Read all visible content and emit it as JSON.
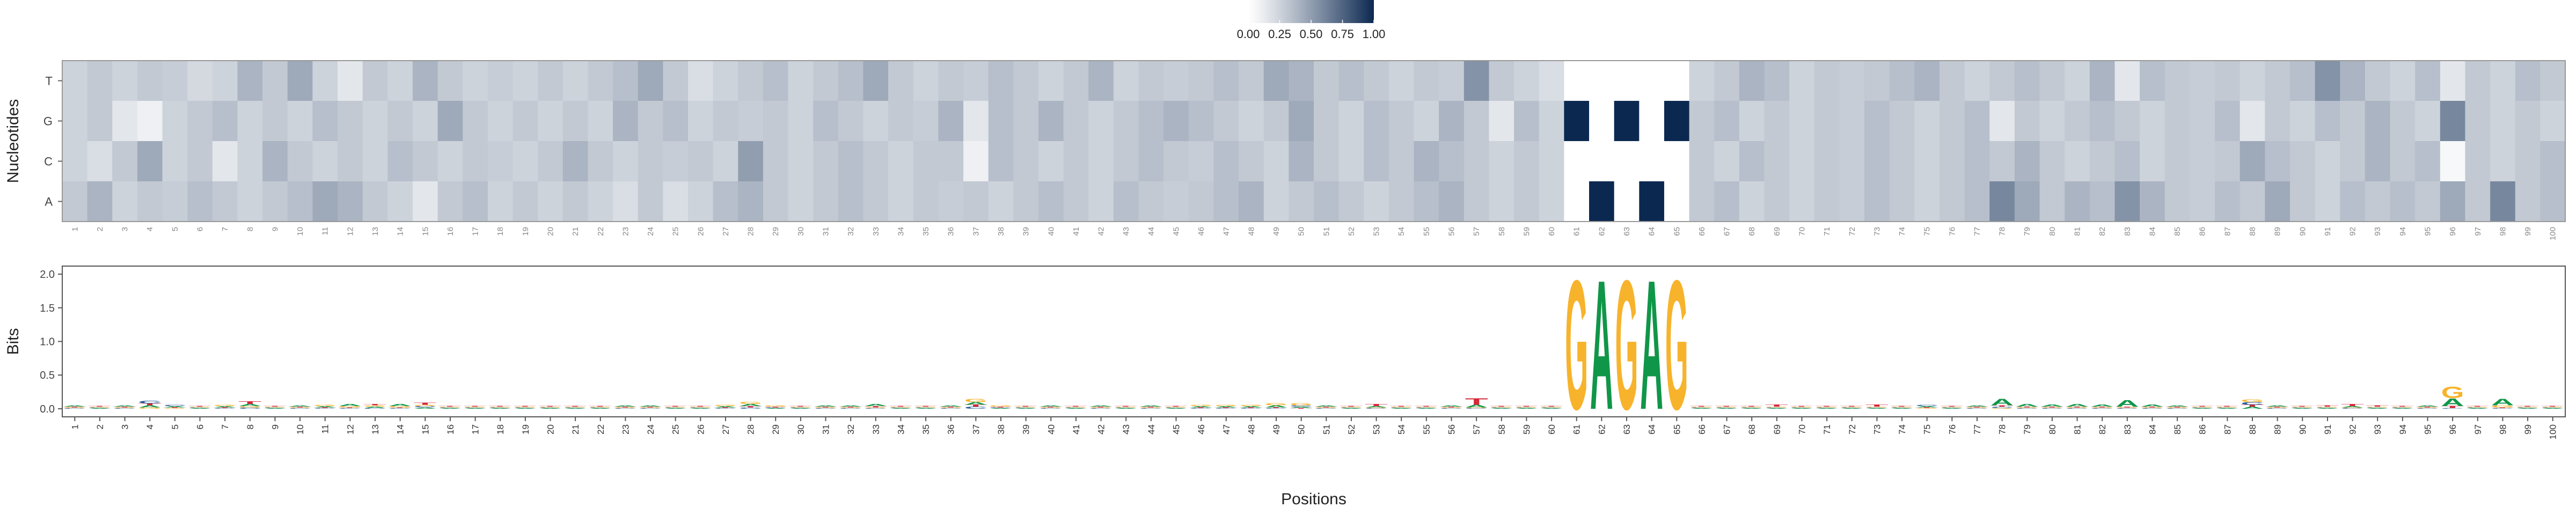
{
  "chart_data": [
    {
      "type": "heatmap",
      "y_label": "Nucleotides",
      "rows": [
        "T",
        "G",
        "C",
        "A"
      ],
      "categories": [
        "1",
        "2",
        "3",
        "4",
        "5",
        "6",
        "7",
        "8",
        "9",
        "10",
        "11",
        "12",
        "13",
        "14",
        "15",
        "16",
        "17",
        "18",
        "19",
        "20",
        "21",
        "22",
        "23",
        "24",
        "25",
        "26",
        "27",
        "28",
        "29",
        "30",
        "31",
        "32",
        "33",
        "34",
        "35",
        "36",
        "37",
        "38",
        "39",
        "40",
        "41",
        "42",
        "43",
        "44",
        "45",
        "46",
        "47",
        "48",
        "49",
        "50",
        "51",
        "52",
        "53",
        "54",
        "55",
        "56",
        "57",
        "58",
        "59",
        "60",
        "61",
        "62",
        "63",
        "64",
        "65",
        "66",
        "67",
        "68",
        "69",
        "70",
        "71",
        "72",
        "73",
        "74",
        "75",
        "76",
        "77",
        "78",
        "79",
        "80",
        "81",
        "82",
        "83",
        "84",
        "85",
        "86",
        "87",
        "88",
        "89",
        "90",
        "91",
        "92",
        "93",
        "94",
        "95",
        "96",
        "97",
        "98",
        "99",
        "100"
      ],
      "values": [
        [
          0.25,
          0.3,
          0.25,
          0.3,
          0.28,
          0.22,
          0.25,
          0.4,
          0.3,
          0.45,
          0.25,
          0.15,
          0.3,
          0.25,
          0.4,
          0.3,
          0.25,
          0.28,
          0.25,
          0.3,
          0.25,
          0.3,
          0.35,
          0.45,
          0.3,
          0.2,
          0.25,
          0.3,
          0.35,
          0.25,
          0.3,
          0.35,
          0.45,
          0.3,
          0.25,
          0.3,
          0.28,
          0.35,
          0.3,
          0.25,
          0.3,
          0.4,
          0.25,
          0.3,
          0.28,
          0.3,
          0.35,
          0.3,
          0.45,
          0.4,
          0.3,
          0.35,
          0.3,
          0.25,
          0.3,
          0.28,
          0.55,
          0.3,
          0.25,
          0.2,
          0,
          0,
          0,
          0,
          0,
          0.25,
          0.3,
          0.4,
          0.35,
          0.25,
          0.3,
          0.28,
          0.3,
          0.35,
          0.4,
          0.3,
          0.25,
          0.3,
          0.35,
          0.3,
          0.25,
          0.4,
          0.15,
          0.35,
          0.3,
          0.28,
          0.3,
          0.25,
          0.3,
          0.35,
          0.55,
          0.4,
          0.3,
          0.25,
          0.35,
          0.15,
          0.3,
          0.25,
          0.35,
          0.3
        ],
        [
          0.25,
          0.3,
          0.15,
          0.1,
          0.25,
          0.3,
          0.35,
          0.25,
          0.3,
          0.25,
          0.35,
          0.3,
          0.25,
          0.3,
          0.25,
          0.45,
          0.3,
          0.25,
          0.3,
          0.25,
          0.3,
          0.25,
          0.4,
          0.3,
          0.35,
          0.25,
          0.3,
          0.28,
          0.3,
          0.25,
          0.35,
          0.3,
          0.25,
          0.3,
          0.28,
          0.4,
          0.15,
          0.35,
          0.3,
          0.4,
          0.3,
          0.25,
          0.3,
          0.35,
          0.4,
          0.35,
          0.3,
          0.25,
          0.3,
          0.45,
          0.3,
          0.25,
          0.35,
          0.3,
          0.25,
          0.4,
          0.3,
          0.15,
          0.35,
          0.25,
          1,
          0,
          1,
          0,
          1,
          0.3,
          0.35,
          0.25,
          0.3,
          0.25,
          0.3,
          0.28,
          0.35,
          0.3,
          0.25,
          0.3,
          0.35,
          0.15,
          0.3,
          0.25,
          0.3,
          0.35,
          0.3,
          0.25,
          0.3,
          0.28,
          0.35,
          0.15,
          0.3,
          0.25,
          0.35,
          0.3,
          0.4,
          0.3,
          0.25,
          0.6,
          0.3,
          0.25,
          0.3,
          0.25
        ],
        [
          0.25,
          0.2,
          0.3,
          0.45,
          0.25,
          0.3,
          0.15,
          0.25,
          0.4,
          0.3,
          0.25,
          0.3,
          0.25,
          0.35,
          0.3,
          0.25,
          0.3,
          0.28,
          0.25,
          0.3,
          0.4,
          0.3,
          0.25,
          0.3,
          0.28,
          0.3,
          0.25,
          0.5,
          0.3,
          0.25,
          0.3,
          0.35,
          0.3,
          0.25,
          0.3,
          0.3,
          0.1,
          0.35,
          0.3,
          0.25,
          0.3,
          0.25,
          0.3,
          0.35,
          0.3,
          0.28,
          0.35,
          0.3,
          0.25,
          0.4,
          0.3,
          0.25,
          0.35,
          0.3,
          0.4,
          0.35,
          0.3,
          0.25,
          0.3,
          0.25,
          0,
          0,
          0,
          0,
          0,
          0.3,
          0.25,
          0.35,
          0.3,
          0.25,
          0.3,
          0.28,
          0.35,
          0.3,
          0.25,
          0.3,
          0.35,
          0.3,
          0.4,
          0.3,
          0.25,
          0.3,
          0.35,
          0.25,
          0.3,
          0.28,
          0.3,
          0.45,
          0.35,
          0.3,
          0.25,
          0.3,
          0.4,
          0.3,
          0.35,
          0.05,
          0.3,
          0.25,
          0.3,
          0.35
        ],
        [
          0.3,
          0.4,
          0.25,
          0.3,
          0.28,
          0.35,
          0.3,
          0.25,
          0.3,
          0.35,
          0.45,
          0.4,
          0.3,
          0.25,
          0.15,
          0.3,
          0.35,
          0.25,
          0.3,
          0.25,
          0.3,
          0.25,
          0.2,
          0.3,
          0.2,
          0.25,
          0.35,
          0.4,
          0.3,
          0.25,
          0.3,
          0.35,
          0.3,
          0.25,
          0.3,
          0.28,
          0.3,
          0.25,
          0.3,
          0.35,
          0.3,
          0.25,
          0.35,
          0.3,
          0.28,
          0.3,
          0.35,
          0.4,
          0.25,
          0.3,
          0.35,
          0.3,
          0.25,
          0.3,
          0.35,
          0.4,
          0.3,
          0.25,
          0.3,
          0.25,
          0,
          1,
          0,
          1,
          0,
          0.3,
          0.35,
          0.25,
          0.3,
          0.25,
          0.3,
          0.28,
          0.35,
          0.3,
          0.25,
          0.3,
          0.35,
          0.6,
          0.45,
          0.3,
          0.4,
          0.35,
          0.55,
          0.4,
          0.3,
          0.28,
          0.35,
          0.3,
          0.45,
          0.3,
          0.25,
          0.35,
          0.3,
          0.35,
          0.3,
          0.45,
          0.3,
          0.6,
          0.3,
          0.35
        ]
      ],
      "colorbar": {
        "clim": [
          0,
          1
        ],
        "colors": [
          "#ffffff",
          "#0b2850"
        ],
        "ticks": [
          {
            "value": 0,
            "label": "0.00"
          },
          {
            "value": 0.25,
            "label": "0.25"
          },
          {
            "value": 0.5,
            "label": "0.50"
          },
          {
            "value": 0.75,
            "label": "0.75"
          },
          {
            "value": 1,
            "label": "1.00"
          }
        ]
      }
    },
    {
      "type": "logo",
      "x_label": "Positions",
      "y_label": "Bits",
      "categories": [
        "1",
        "2",
        "3",
        "4",
        "5",
        "6",
        "7",
        "8",
        "9",
        "10",
        "11",
        "12",
        "13",
        "14",
        "15",
        "16",
        "17",
        "18",
        "19",
        "20",
        "21",
        "22",
        "23",
        "24",
        "25",
        "26",
        "27",
        "28",
        "29",
        "30",
        "31",
        "32",
        "33",
        "34",
        "35",
        "36",
        "37",
        "38",
        "39",
        "40",
        "41",
        "42",
        "43",
        "44",
        "45",
        "46",
        "47",
        "48",
        "49",
        "50",
        "51",
        "52",
        "53",
        "54",
        "55",
        "56",
        "57",
        "58",
        "59",
        "60",
        "61",
        "62",
        "63",
        "64",
        "65",
        "66",
        "67",
        "68",
        "69",
        "70",
        "71",
        "72",
        "73",
        "74",
        "75",
        "76",
        "77",
        "78",
        "79",
        "80",
        "81",
        "82",
        "83",
        "84",
        "85",
        "86",
        "87",
        "88",
        "89",
        "90",
        "91",
        "92",
        "93",
        "94",
        "95",
        "96",
        "97",
        "98",
        "99",
        "100"
      ],
      "ylim": [
        -0.12,
        2.12
      ],
      "yticks": [
        {
          "value": 0,
          "label": "0.0"
        },
        {
          "value": 0.5,
          "label": "0.5"
        },
        {
          "value": 1,
          "label": "1.0"
        },
        {
          "value": 1.5,
          "label": "1.5"
        },
        {
          "value": 2,
          "label": "2.0"
        }
      ],
      "series": [
        {
          "name": "A",
          "color": "#109648",
          "values": [
            0.02,
            0.01,
            0.02,
            0.03,
            0.02,
            0.01,
            0.02,
            0.03,
            0.01,
            0.02,
            0.02,
            0.03,
            0.02,
            0.03,
            0.02,
            0.01,
            0.01,
            0.01,
            0.01,
            0.01,
            0.01,
            0.01,
            0.02,
            0.02,
            0.01,
            0.01,
            0.02,
            0.03,
            0.01,
            0.01,
            0.02,
            0.02,
            0.03,
            0.01,
            0.01,
            0.02,
            0.04,
            0.01,
            0.01,
            0.02,
            0.01,
            0.02,
            0.01,
            0.02,
            0.01,
            0.02,
            0.02,
            0.02,
            0.03,
            0.02,
            0.02,
            0.01,
            0.02,
            0.01,
            0.01,
            0.02,
            0.04,
            0.01,
            0.01,
            0.01,
            0,
            2,
            0,
            2,
            0,
            0.01,
            0.01,
            0.01,
            0.01,
            0.01,
            0.01,
            0.01,
            0.01,
            0.01,
            0.02,
            0.01,
            0.02,
            0.1,
            0.04,
            0.03,
            0.04,
            0.03,
            0.1,
            0.03,
            0.02,
            0.01,
            0.01,
            0.03,
            0.02,
            0.01,
            0.01,
            0.02,
            0.01,
            0.01,
            0.02,
            0.12,
            0.01,
            0.1,
            0.01,
            0.01
          ]
        },
        {
          "name": "C",
          "color": "#255c99",
          "values": [
            0.01,
            0.01,
            0.01,
            0.04,
            0.02,
            0.01,
            0.01,
            0.02,
            0.01,
            0.01,
            0.01,
            0.01,
            0.01,
            0.01,
            0.02,
            0.01,
            0.01,
            0.01,
            0.01,
            0.01,
            0.01,
            0.01,
            0.01,
            0.01,
            0.01,
            0.01,
            0.01,
            0.02,
            0.01,
            0.01,
            0.01,
            0.01,
            0.01,
            0.01,
            0.01,
            0.01,
            0.03,
            0.01,
            0.01,
            0.01,
            0.01,
            0.01,
            0.01,
            0.01,
            0.01,
            0.01,
            0.01,
            0.01,
            0.01,
            0.02,
            0.01,
            0.01,
            0.01,
            0.01,
            0.01,
            0.01,
            0.01,
            0.01,
            0.01,
            0.01,
            0,
            0,
            0,
            0,
            0,
            0.01,
            0.01,
            0.01,
            0.01,
            0.01,
            0.01,
            0.01,
            0.01,
            0.01,
            0.02,
            0.01,
            0.01,
            0.02,
            0.01,
            0.01,
            0.01,
            0.01,
            0.01,
            0.01,
            0.01,
            0.01,
            0.01,
            0.04,
            0.01,
            0.01,
            0.01,
            0.01,
            0.01,
            0.01,
            0.01,
            0.01,
            0.01,
            0.01,
            0.01,
            0.01
          ]
        },
        {
          "name": "G",
          "color": "#f7b32b",
          "values": [
            0.01,
            0.01,
            0.01,
            0.02,
            0.01,
            0.01,
            0.02,
            0.02,
            0.01,
            0.01,
            0.02,
            0.02,
            0.02,
            0.02,
            0.02,
            0.01,
            0.01,
            0.01,
            0.01,
            0.01,
            0.01,
            0.01,
            0.01,
            0.01,
            0.01,
            0.01,
            0.02,
            0.03,
            0.02,
            0.01,
            0.01,
            0.01,
            0.01,
            0.01,
            0.01,
            0.01,
            0.05,
            0.02,
            0.01,
            0.01,
            0.01,
            0.01,
            0.01,
            0.01,
            0.01,
            0.02,
            0.02,
            0.02,
            0.03,
            0.03,
            0.01,
            0.01,
            0.01,
            0.01,
            0.01,
            0.01,
            0.01,
            0.01,
            0.01,
            0.01,
            2,
            0,
            2,
            0,
            2,
            0.01,
            0.01,
            0.01,
            0.01,
            0.01,
            0.01,
            0.01,
            0.01,
            0.01,
            0.01,
            0.01,
            0.01,
            0.01,
            0.01,
            0.01,
            0.01,
            0.01,
            0.01,
            0.01,
            0.01,
            0.01,
            0.01,
            0.04,
            0.01,
            0.01,
            0.01,
            0.01,
            0.01,
            0.01,
            0.01,
            0.18,
            0.01,
            0.03,
            0.01,
            0.01
          ]
        },
        {
          "name": "T",
          "color": "#d62839",
          "values": [
            0.01,
            0.01,
            0.01,
            0.03,
            0.01,
            0.01,
            0.01,
            0.04,
            0.01,
            0.01,
            0.01,
            0.01,
            0.02,
            0.01,
            0.03,
            0.01,
            0.01,
            0.01,
            0.01,
            0.01,
            0.01,
            0.01,
            0.01,
            0.01,
            0.01,
            0.01,
            0.01,
            0.02,
            0.01,
            0.01,
            0.01,
            0.01,
            0.02,
            0.01,
            0.01,
            0.01,
            0.03,
            0.01,
            0.01,
            0.01,
            0.01,
            0.01,
            0.01,
            0.01,
            0.01,
            0.01,
            0.01,
            0.01,
            0.01,
            0.01,
            0.01,
            0.01,
            0.03,
            0.01,
            0.01,
            0.01,
            0.1,
            0.01,
            0.01,
            0.01,
            0,
            0,
            0,
            0,
            0,
            0.01,
            0.01,
            0.01,
            0.03,
            0.01,
            0.01,
            0.01,
            0.03,
            0.01,
            0.01,
            0.01,
            0.01,
            0.02,
            0.01,
            0.01,
            0.01,
            0.01,
            0.01,
            0.01,
            0.01,
            0.01,
            0.01,
            0.03,
            0.01,
            0.01,
            0.02,
            0.03,
            0.02,
            0.01,
            0.01,
            0.03,
            0.01,
            0.01,
            0.01,
            0.01
          ]
        }
      ]
    }
  ]
}
